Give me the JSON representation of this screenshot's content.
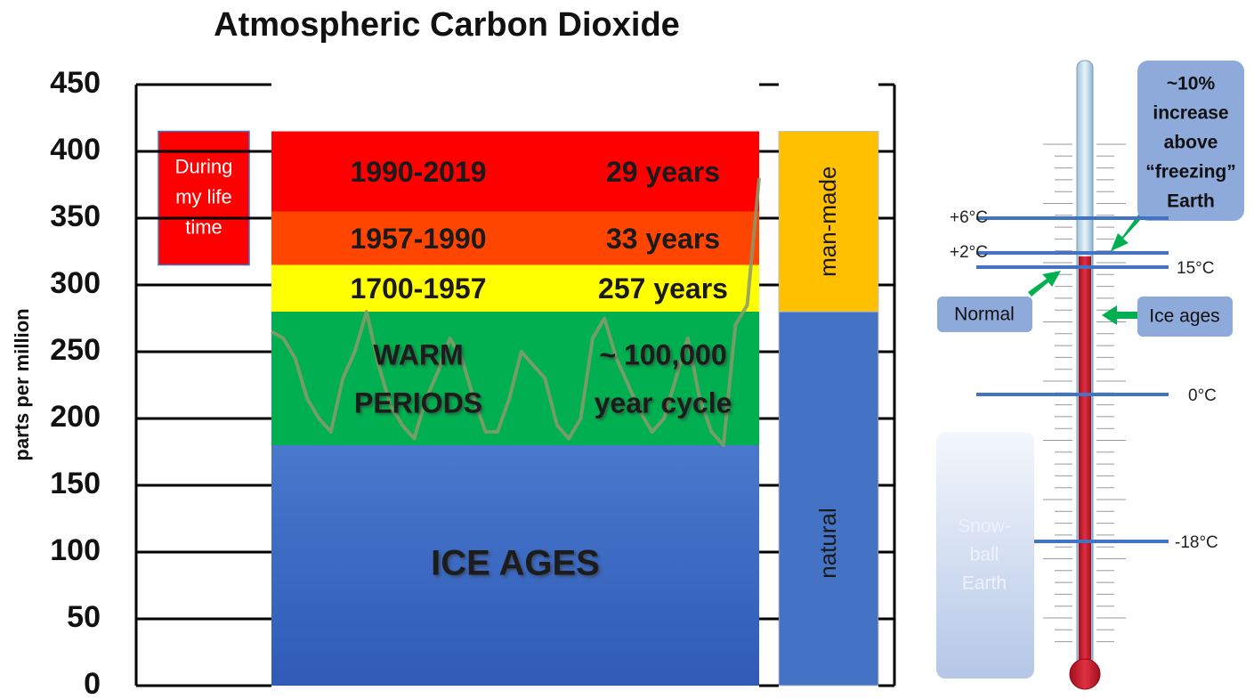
{
  "chart_data": {
    "type": "band",
    "title": "Atmospheric Carbon Dioxide",
    "y_label": "parts per million",
    "ylim": [
      0,
      450
    ],
    "yticks": [
      0,
      50,
      100,
      150,
      200,
      250,
      300,
      350,
      400,
      450
    ],
    "grid": true,
    "bands": [
      {
        "name_lines": [
          "ICE AGES"
        ],
        "range": [
          0,
          180
        ],
        "color": "#4472c4"
      },
      {
        "name_lines": [
          "WARM",
          "PERIODS"
        ],
        "period_lines": [
          "~ 100,000",
          "year cycle"
        ],
        "range": [
          180,
          280
        ],
        "color": "#00b050"
      },
      {
        "name_lines": [
          "1700-1957"
        ],
        "period_lines": [
          "257 years"
        ],
        "range": [
          280,
          315
        ],
        "color": "#ffff00"
      },
      {
        "name_lines": [
          "1957-1990"
        ],
        "period_lines": [
          "33 years"
        ],
        "range": [
          315,
          355
        ],
        "color": "#ff4500"
      },
      {
        "name_lines": [
          "1990-2019"
        ],
        "period_lines": [
          "29 years"
        ],
        "range": [
          355,
          415
        ],
        "color": "#ff0000"
      }
    ],
    "life_box": {
      "lines": [
        "During",
        "my life",
        "time"
      ],
      "range": [
        315,
        415
      ],
      "color": "#ff0000"
    },
    "sources": [
      {
        "label": "natural",
        "range": [
          0,
          280
        ],
        "color": "#4472c4"
      },
      {
        "label": "man-made",
        "range": [
          280,
          415
        ],
        "color": "#ffc000"
      }
    ],
    "ice_core": {
      "color": "#8a9a6b",
      "values": [
        265,
        260,
        245,
        215,
        200,
        190,
        230,
        250,
        280,
        240,
        210,
        195,
        185,
        215,
        235,
        260,
        245,
        215,
        190,
        190,
        215,
        250,
        240,
        230,
        195,
        185,
        200,
        260,
        275,
        245,
        225,
        205,
        190,
        200,
        230,
        260,
        215,
        190,
        180,
        270,
        285,
        380
      ]
    }
  },
  "thermometer": {
    "temperature_labels": [
      "+6°C",
      "+2°C",
      "15°C",
      "0°C",
      "-18°C"
    ],
    "callouts": {
      "increase": [
        "~10%",
        "increase",
        "above",
        "“freezing”",
        "Earth"
      ],
      "normal": "Normal",
      "ice_ages": "Ice ages",
      "snowball": [
        "Snow-",
        "ball",
        "Earth"
      ]
    }
  }
}
